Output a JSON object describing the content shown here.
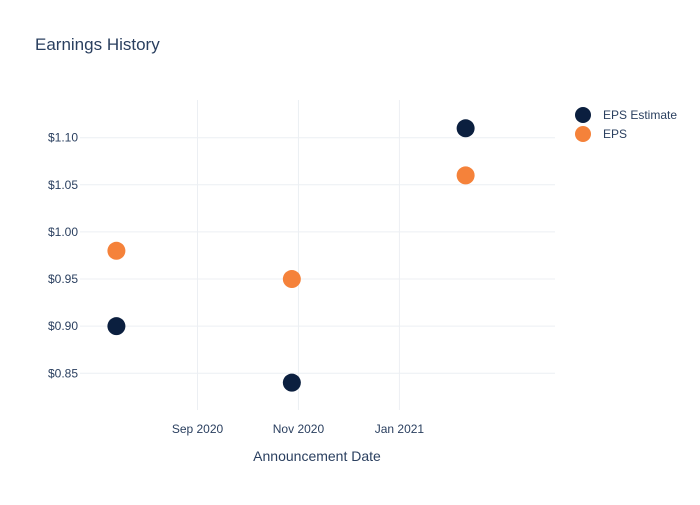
{
  "chart_data": {
    "type": "scatter",
    "title": "Earnings History",
    "xlabel": "Announcement Date",
    "ylabel": "",
    "x_type": "date",
    "xlim": [
      "2020-06-22",
      "2021-04-05"
    ],
    "ylim": [
      0.811,
      1.14
    ],
    "x_ticks": [
      {
        "value": "2020-09-01",
        "label": "Sep 2020"
      },
      {
        "value": "2020-11-01",
        "label": "Nov 2020"
      },
      {
        "value": "2021-01-01",
        "label": "Jan 2021"
      }
    ],
    "y_ticks": [
      {
        "value": 0.85,
        "label": "$0.85"
      },
      {
        "value": 0.9,
        "label": "$0.90"
      },
      {
        "value": 0.95,
        "label": "$0.95"
      },
      {
        "value": 1.0,
        "label": "$1.00"
      },
      {
        "value": 1.05,
        "label": "$1.05"
      },
      {
        "value": 1.1,
        "label": "$1.10"
      }
    ],
    "grid": true,
    "legend_position": "top-right",
    "series": [
      {
        "name": "EPS Estimate",
        "color": "#0b1f3f",
        "x": [
          "2020-07-14",
          "2020-10-28",
          "2021-02-10"
        ],
        "y": [
          0.9,
          0.84,
          1.11
        ]
      },
      {
        "name": "EPS",
        "color": "#f5823a",
        "x": [
          "2020-07-14",
          "2020-10-28",
          "2021-02-10"
        ],
        "y": [
          0.98,
          0.95,
          1.06
        ]
      }
    ]
  }
}
